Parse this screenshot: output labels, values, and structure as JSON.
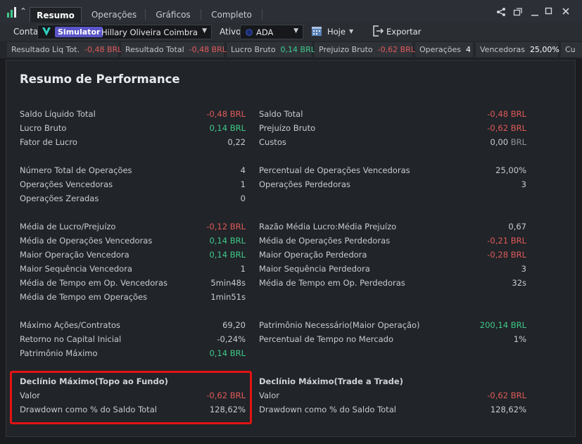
{
  "tabs": [
    "Resumo",
    "Operações",
    "Gráficos",
    "Completo"
  ],
  "toolbar": {
    "conta_label": "Conta",
    "simulator_badge": "Simulator",
    "account_name": "Hillary Oliveira Coimbra",
    "ativo_label": "Ativo",
    "asset": "ADA",
    "date_filter": "Hoje",
    "export_label": "Exportar"
  },
  "stats": [
    {
      "label": "Resultado Liq Tot.",
      "value": "-0,48",
      "unit": "BRL",
      "tone": "neg"
    },
    {
      "label": "Resultado Total",
      "value": "-0,48",
      "unit": "BRL",
      "tone": "neg"
    },
    {
      "label": "Lucro Bruto",
      "value": "0,14",
      "unit": "BRL",
      "tone": "pos"
    },
    {
      "label": "Prejuizo Bruto",
      "value": "-0,62",
      "unit": "BRL",
      "tone": "neg"
    },
    {
      "label": "Operações",
      "value": "4",
      "unit": "",
      "tone": "white"
    },
    {
      "label": "Vencedoras",
      "value": "25,00%",
      "unit": "",
      "tone": "white"
    },
    {
      "label": "Cu",
      "value": "",
      "unit": "",
      "tone": "white"
    }
  ],
  "report": {
    "title": "Resumo de Performance",
    "left": [
      {
        "label": "Saldo Líquido Total",
        "value": "-0,48",
        "unit": "BRL",
        "tone": "neg"
      },
      {
        "label": "Lucro Bruto",
        "value": "0,14",
        "unit": "BRL",
        "tone": "pos"
      },
      {
        "label": "Fator de Lucro",
        "value": "0,22",
        "unit": "",
        "tone": "plain"
      },
      {
        "label": "Número Total de Operações",
        "value": "4",
        "unit": "",
        "tone": "plain"
      },
      {
        "label": "Operações Vencedoras",
        "value": "1",
        "unit": "",
        "tone": "plain"
      },
      {
        "label": "Operações Zeradas",
        "value": "0",
        "unit": "",
        "tone": "plain"
      },
      {
        "label": "Média de Lucro/Prejuízo",
        "value": "-0,12",
        "unit": "BRL",
        "tone": "neg"
      },
      {
        "label": "Média de Operações Vencedoras",
        "value": "0,14",
        "unit": "BRL",
        "tone": "pos"
      },
      {
        "label": "Maior Operação Vencedora",
        "value": "0,14",
        "unit": "BRL",
        "tone": "pos"
      },
      {
        "label": "Maior Sequência Vencedora",
        "value": "1",
        "unit": "",
        "tone": "plain"
      },
      {
        "label": "Média de Tempo em Op. Vencedoras",
        "value": "5min48s",
        "unit": "",
        "tone": "plain"
      },
      {
        "label": "Média de Tempo em Operações",
        "value": "1min51s",
        "unit": "",
        "tone": "plain"
      },
      {
        "label": "Máximo Ações/Contratos",
        "value": "69,20",
        "unit": "",
        "tone": "plain"
      },
      {
        "label": "Retorno no Capital Inicial",
        "value": "-0,24%",
        "unit": "",
        "tone": "plain"
      },
      {
        "label": "Patrimônio Máximo",
        "value": "0,14",
        "unit": "BRL",
        "tone": "pos"
      },
      {
        "label": "Valor",
        "value": "-0,62",
        "unit": "BRL",
        "tone": "neg"
      },
      {
        "label": "Drawdown como % do Saldo Total",
        "value": "128,62%",
        "unit": "",
        "tone": "plain"
      }
    ],
    "right": [
      {
        "label": "Saldo Total",
        "value": "-0,48",
        "unit": "BRL",
        "tone": "neg"
      },
      {
        "label": "Prejuízo Bruto",
        "value": "-0,62",
        "unit": "BRL",
        "tone": "neg"
      },
      {
        "label": "Custos",
        "value": "0,00",
        "unit": "BRL",
        "tone": "plain"
      },
      {
        "label": "Percentual de Operações Vencedoras",
        "value": "25,00%",
        "unit": "",
        "tone": "plain"
      },
      {
        "label": "Operações Perdedoras",
        "value": "3",
        "unit": "",
        "tone": "plain"
      },
      {
        "label": "Razão Média Lucro:Média Prejuízo",
        "value": "0,67",
        "unit": "",
        "tone": "plain"
      },
      {
        "label": "Média de Operações Perdedoras",
        "value": "-0,21",
        "unit": "BRL",
        "tone": "neg"
      },
      {
        "label": "Maior Operação Perdedora",
        "value": "-0,28",
        "unit": "BRL",
        "tone": "neg"
      },
      {
        "label": "Maior Sequência Perdedora",
        "value": "3",
        "unit": "",
        "tone": "plain"
      },
      {
        "label": "Média de Tempo em Op. Perdedoras",
        "value": "32s",
        "unit": "",
        "tone": "plain"
      },
      {
        "label": "Patrimônio Necessário(Maior Operação)",
        "value": "200,14",
        "unit": "BRL",
        "tone": "pos"
      },
      {
        "label": "Percentual de Tempo no Mercado",
        "value": "1%",
        "unit": "",
        "tone": "plain"
      },
      {
        "label": "Valor",
        "value": "-0,62",
        "unit": "BRL",
        "tone": "neg"
      },
      {
        "label": "Drawdown como % do Saldo Total",
        "value": "128,62%",
        "unit": "",
        "tone": "plain"
      }
    ],
    "drawdown_left_title": "Declínio Máximo(Topo ao Fundo)",
    "drawdown_right_title": "Declínio Máximo(Trade a Trade)"
  },
  "colors": {
    "negative": "#e05a5a",
    "positive": "#3fc98a",
    "highlight": "#e21414",
    "simulator": "#5a55c8"
  }
}
